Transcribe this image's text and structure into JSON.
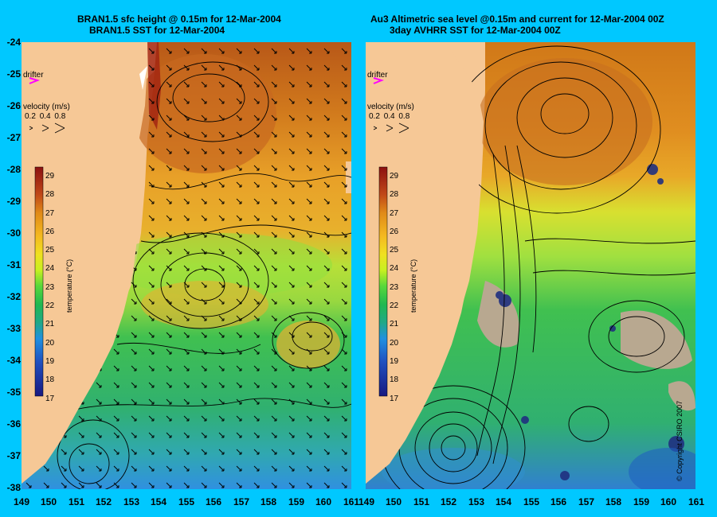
{
  "left_panel": {
    "title_line1": "BRAN1.5 sfc height @ 0.15m for 12-Mar-2004",
    "title_line2": "BRAN1.5 SST for 12-Mar-2004",
    "drifter_label": "drifter",
    "velocity_label": "velocity (m/s)",
    "velocity_scale": [
      "0.2",
      "0.4",
      "0.8"
    ],
    "colorbar_label": "temperature (°C)",
    "colorbar_ticks": [
      "29",
      "28",
      "27",
      "26",
      "25",
      "24",
      "23",
      "22",
      "21",
      "20",
      "19",
      "18",
      "17"
    ]
  },
  "right_panel": {
    "title_line1": "Au3 Altimetric sea level  @0.15m and current for 12-Mar-2004 00Z",
    "title_line2": "3day AVHRR SST for 12-Mar-2004 00Z",
    "drifter_label": "drifter",
    "velocity_label": "velocity (m/s)",
    "velocity_scale": [
      "0.2",
      "0.4",
      "0.8"
    ],
    "colorbar_label": "temperature (°C)",
    "colorbar_ticks": [
      "29",
      "28",
      "27",
      "26",
      "25",
      "24",
      "23",
      "22",
      "21",
      "20",
      "19",
      "18",
      "17"
    ]
  },
  "y_axis_labels": [
    "-24",
    "-25",
    "-26",
    "-27",
    "-28",
    "-29",
    "-30",
    "-31",
    "-32",
    "-33",
    "-34",
    "-35",
    "-36",
    "-37",
    "-38"
  ],
  "x_axis_left": [
    "149",
    "150",
    "151",
    "152",
    "153",
    "154",
    "155",
    "156",
    "157",
    "158",
    "159",
    "160",
    "161"
  ],
  "x_axis_right": [
    "149",
    "150",
    "151",
    "152",
    "153",
    "154",
    "155",
    "156",
    "157",
    "158",
    "159",
    "160",
    "161"
  ],
  "copyright": "© Copyright CSIRO 2007",
  "colors": {
    "background": "#00c8ff",
    "land": "#f6c896",
    "drifter": "#ff00ff"
  }
}
